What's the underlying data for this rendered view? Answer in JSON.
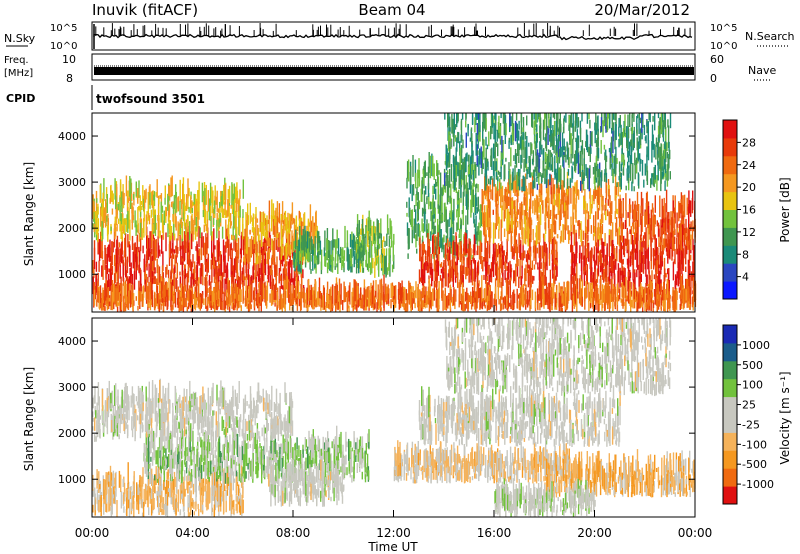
{
  "header": {
    "station": "Inuvik (fitACF)",
    "beam": "Beam 04",
    "date": "20/Mar/2012"
  },
  "top_panels": {
    "nsky_label": "N.Sky",
    "nsky_ticks": [
      "10^5",
      "10^0"
    ],
    "nsearch_label": "N.Search",
    "nsearch_ticks": [
      "10^5",
      "10^0"
    ],
    "freq_label_1": "Freq.",
    "freq_label_2": "[MHz]",
    "freq_ticks": [
      "10",
      "8"
    ],
    "nave_label": "Nave",
    "nave_ticks": [
      "60",
      "0"
    ],
    "cpid_label": "CPID",
    "cpid_value": "twofsound 3501"
  },
  "chart_data": [
    {
      "type": "heatmap",
      "title": "",
      "xlabel": "",
      "ylabel": "Slant Range [km]",
      "xlim": [
        0,
        24
      ],
      "ylim": [
        180,
        4500
      ],
      "yticks": [
        "1000",
        "2000",
        "3000",
        "4000"
      ],
      "colorbar": {
        "label": "Power [dB]",
        "ticks": [
          "28",
          "24",
          "20",
          "16",
          "12",
          "8",
          "4"
        ],
        "range": [
          0,
          32
        ],
        "colors": [
          "#0a18ff",
          "#2a46c0",
          "#1a8a78",
          "#3f9650",
          "#72c23d",
          "#e8c410",
          "#f59820",
          "#f06a10",
          "#e83a0a",
          "#e01010"
        ]
      },
      "bands": [
        {
          "t": [
            0.0,
            8.5
          ],
          "r": [
            500,
            1600
          ],
          "val": 28
        },
        {
          "t": [
            0.0,
            6.0
          ],
          "r": [
            1700,
            2700
          ],
          "val": 18
        },
        {
          "t": [
            6.0,
            9.0
          ],
          "r": [
            1200,
            2200
          ],
          "val": 20
        },
        {
          "t": [
            8.0,
            10.8
          ],
          "r": [
            1000,
            1600
          ],
          "val": 12
        },
        {
          "t": [
            10.5,
            12.0
          ],
          "r": [
            900,
            1900
          ],
          "val": 14
        },
        {
          "t": [
            12.5,
            15.5
          ],
          "r": [
            1300,
            3200
          ],
          "val": 12
        },
        {
          "t": [
            13.0,
            18.5
          ],
          "r": [
            700,
            1500
          ],
          "val": 27
        },
        {
          "t": [
            15.5,
            21.0
          ],
          "r": [
            1600,
            2800
          ],
          "val": 22
        },
        {
          "t": [
            19.0,
            24.0
          ],
          "r": [
            500,
            1500
          ],
          "val": 29
        },
        {
          "t": [
            21.0,
            24.0
          ],
          "r": [
            1500,
            2400
          ],
          "val": 26
        },
        {
          "t": [
            0.0,
            24.0
          ],
          "r": [
            180,
            500
          ],
          "val": 24
        },
        {
          "t": [
            14.0,
            23.0
          ],
          "r": [
            2800,
            4400
          ],
          "val": 10
        }
      ]
    },
    {
      "type": "heatmap",
      "title": "",
      "xlabel": "Time UT",
      "ylabel": "Slant Range [km]",
      "xlim": [
        0,
        24
      ],
      "ylim": [
        180,
        4500
      ],
      "xticks": [
        "00:00",
        "04:00",
        "08:00",
        "12:00",
        "16:00",
        "20:00",
        "00:00"
      ],
      "yticks": [
        "1000",
        "2000",
        "3000",
        "4000"
      ],
      "colorbar": {
        "label": "Velocity [m s⁻¹]",
        "ticks": [
          "1000",
          "500",
          "100",
          "25",
          "-25",
          "-100",
          "-500",
          "-1000"
        ],
        "range": [
          -1200,
          1200
        ],
        "colors": [
          "#e01010",
          "#f06a10",
          "#f59820",
          "#f5b25a",
          "#c8c8c0",
          "#c8c8c0",
          "#72c23d",
          "#3f9650",
          "#1a5c8a",
          "#1a2ab4"
        ]
      },
      "bands": [
        {
          "t": [
            0.0,
            6.0
          ],
          "r": [
            180,
            900
          ],
          "val": -300
        },
        {
          "t": [
            2.0,
            11.0
          ],
          "r": [
            900,
            1700
          ],
          "val": 250
        },
        {
          "t": [
            0.0,
            8.0
          ],
          "r": [
            1800,
            2700
          ],
          "val": 10
        },
        {
          "t": [
            7.0,
            10.0
          ],
          "r": [
            400,
            1000
          ],
          "val": 5
        },
        {
          "t": [
            12.0,
            19.0
          ],
          "r": [
            900,
            1400
          ],
          "val": -250
        },
        {
          "t": [
            13.0,
            21.0
          ],
          "r": [
            1700,
            2600
          ],
          "val": 0
        },
        {
          "t": [
            18.0,
            24.0
          ],
          "r": [
            600,
            1200
          ],
          "val": -400
        },
        {
          "t": [
            16.0,
            20.0
          ],
          "r": [
            180,
            600
          ],
          "val": 60
        },
        {
          "t": [
            14.0,
            23.0
          ],
          "r": [
            2800,
            4400
          ],
          "val": 15
        }
      ]
    }
  ]
}
